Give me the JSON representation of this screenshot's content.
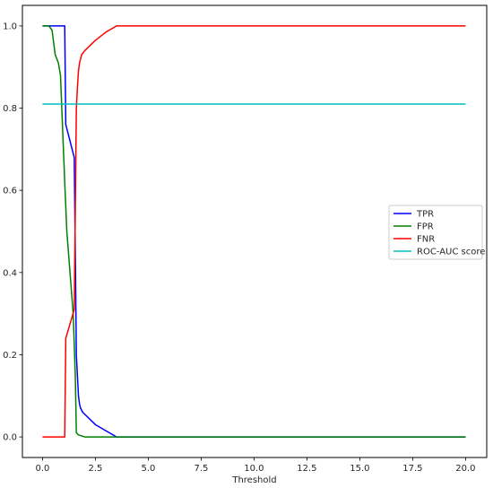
{
  "chart_data": {
    "type": "line",
    "title": "",
    "xlabel": "Threshold",
    "ylabel": "",
    "xlim": [
      -0.95,
      21.0
    ],
    "ylim": [
      -0.05,
      1.05
    ],
    "x_ticks": [
      0.0,
      2.5,
      5.0,
      7.5,
      10.0,
      12.5,
      15.0,
      17.5,
      20.0
    ],
    "x_tick_labels": [
      "0.0",
      "2.5",
      "5.0",
      "7.5",
      "10.0",
      "12.5",
      "15.0",
      "17.5",
      "20.0"
    ],
    "y_ticks": [
      0.0,
      0.2,
      0.4,
      0.6,
      0.8,
      1.0
    ],
    "y_tick_labels": [
      "0.0",
      "0.2",
      "0.4",
      "0.6",
      "0.8",
      "1.0"
    ],
    "grid": false,
    "legend_position": "center-right",
    "series": [
      {
        "name": "TPR",
        "color": "#0000ff",
        "x": [
          0.0,
          1.0,
          1.05,
          1.1,
          1.5,
          1.55,
          1.6,
          1.65,
          1.7,
          1.75,
          1.8,
          1.9,
          2.0,
          2.2,
          2.5,
          3.0,
          3.5,
          20.0
        ],
        "y": [
          1.0,
          1.0,
          1.0,
          0.76,
          0.68,
          0.45,
          0.2,
          0.15,
          0.1,
          0.08,
          0.07,
          0.06,
          0.055,
          0.045,
          0.03,
          0.015,
          0.0,
          0.0
        ]
      },
      {
        "name": "FPR",
        "color": "#008000",
        "x": [
          0.0,
          0.3,
          0.45,
          0.6,
          0.75,
          0.85,
          0.95,
          1.05,
          1.15,
          1.3,
          1.45,
          1.55,
          1.6,
          1.7,
          2.0,
          20.0
        ],
        "y": [
          1.0,
          1.0,
          0.99,
          0.93,
          0.91,
          0.88,
          0.75,
          0.62,
          0.5,
          0.4,
          0.3,
          0.15,
          0.01,
          0.005,
          0.0,
          0.0
        ]
      },
      {
        "name": "FNR",
        "color": "#ff0000",
        "x": [
          0.0,
          1.05,
          1.1,
          1.5,
          1.55,
          1.6,
          1.65,
          1.7,
          1.75,
          1.85,
          2.0,
          2.2,
          2.5,
          3.0,
          3.5,
          20.0
        ],
        "y": [
          0.0,
          0.0,
          0.24,
          0.31,
          0.55,
          0.8,
          0.85,
          0.89,
          0.91,
          0.93,
          0.94,
          0.95,
          0.965,
          0.985,
          1.0,
          1.0
        ]
      },
      {
        "name": "ROC-AUC score",
        "color": "#00bfbf",
        "x": [
          0.0,
          20.0
        ],
        "y": [
          0.81,
          0.81
        ]
      }
    ]
  }
}
